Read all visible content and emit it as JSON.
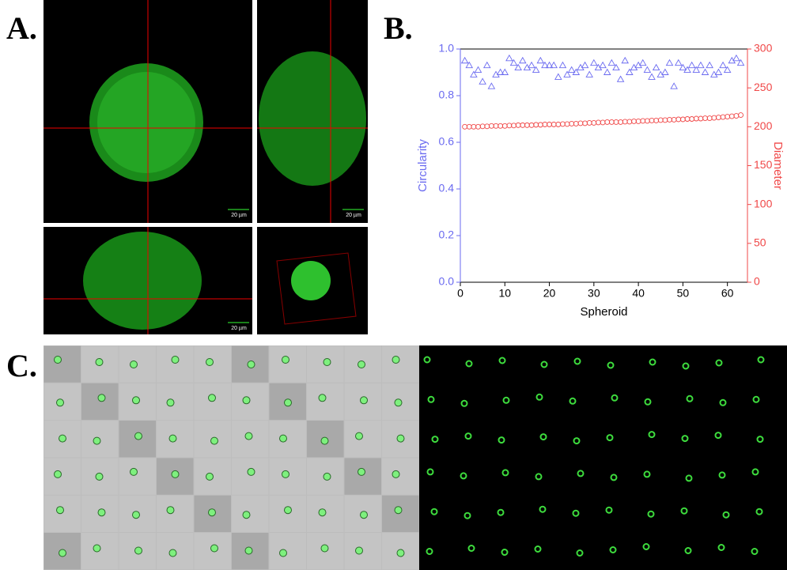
{
  "panel_labels": [
    "A.",
    "B.",
    "C."
  ],
  "scale_bars": [
    "20 µm",
    "20 µm",
    "20 µm"
  ],
  "chart_data": {
    "type": "scatter",
    "xlabel": "Spheroid",
    "ylabel": "Circularity",
    "y2label": "Diameter",
    "xlim": [
      0,
      64.5
    ],
    "xticks": [
      0,
      10,
      20,
      30,
      40,
      50,
      60
    ],
    "ylim": [
      0,
      1
    ],
    "yticks": [
      {
        "value": 0,
        "label": "0.0"
      },
      0.2,
      0.4,
      0.6,
      0.8,
      {
        "value": 1,
        "label": "1.0"
      }
    ],
    "y2lim": [
      0,
      300
    ],
    "y2ticks": [
      0,
      50,
      100,
      150,
      200,
      250,
      300
    ],
    "x": [
      1,
      2,
      3,
      4,
      5,
      6,
      7,
      8,
      9,
      10,
      11,
      12,
      13,
      14,
      15,
      16,
      17,
      18,
      19,
      20,
      21,
      22,
      23,
      24,
      25,
      26,
      27,
      28,
      29,
      30,
      31,
      32,
      33,
      34,
      35,
      36,
      37,
      38,
      39,
      40,
      41,
      42,
      43,
      44,
      45,
      46,
      47,
      48,
      49,
      50,
      51,
      52,
      53,
      54,
      55,
      56,
      57,
      58,
      59,
      60,
      61,
      62,
      63
    ],
    "series": [
      {
        "color": "#6a6af0",
        "marker": "triangle",
        "values": [
          0.95,
          0.93,
          0.89,
          0.91,
          0.86,
          0.93,
          0.84,
          0.89,
          0.9,
          0.9,
          0.96,
          0.94,
          0.92,
          0.95,
          0.92,
          0.93,
          0.91,
          0.95,
          0.93,
          0.93,
          0.93,
          0.88,
          0.93,
          0.89,
          0.91,
          0.9,
          0.92,
          0.93,
          0.89,
          0.94,
          0.92,
          0.93,
          0.9,
          0.94,
          0.92,
          0.87,
          0.95,
          0.9,
          0.92,
          0.93,
          0.94,
          0.91,
          0.88,
          0.92,
          0.89,
          0.9,
          0.94,
          0.84,
          0.94,
          0.92,
          0.91,
          0.93,
          0.91,
          0.93,
          0.9,
          0.93,
          0.89,
          0.9,
          0.93,
          0.91,
          0.95,
          0.96,
          0.94
        ]
      },
      {
        "color": "#f04848",
        "marker": "circle",
        "axis": "y2",
        "values": [
          200,
          200,
          200,
          200,
          200.5,
          200.5,
          201,
          201,
          201,
          201,
          201.5,
          201.5,
          202,
          202,
          202,
          202,
          202.5,
          202.5,
          203,
          203,
          203,
          203,
          203.5,
          203.5,
          204,
          204,
          204.5,
          204.5,
          205,
          205,
          205.5,
          205.5,
          206,
          206,
          206,
          206,
          206.5,
          206.5,
          207,
          207,
          207.5,
          207.5,
          208,
          208,
          208.5,
          208.5,
          209,
          209,
          209.5,
          209.5,
          210,
          210,
          210.5,
          210.5,
          211,
          211,
          211.5,
          212,
          212.5,
          213,
          213.5,
          214,
          215
        ]
      }
    ]
  }
}
